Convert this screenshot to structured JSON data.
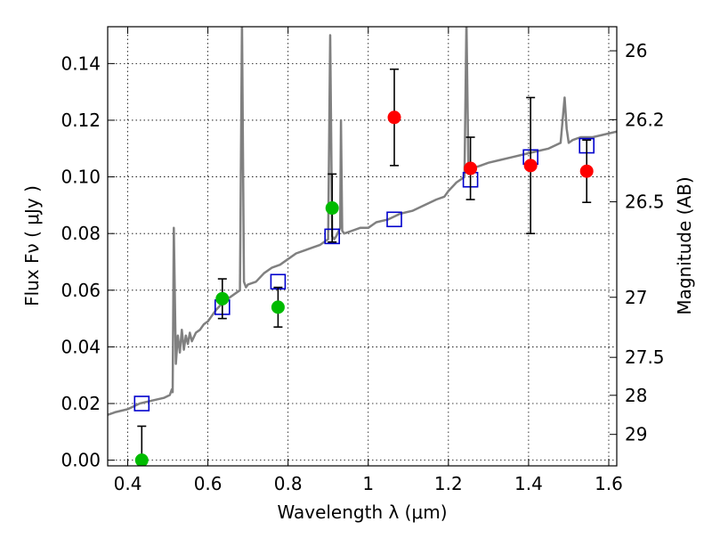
{
  "chart_data": {
    "type": "scatter",
    "xlabel": "Wavelength  λ (μm)",
    "ylabel_left": "Flux  Fν  ( μJy )",
    "ylabel_right": "Magnitude (AB)",
    "xlim": [
      0.35,
      1.62
    ],
    "ylim": [
      -0.002,
      0.153
    ],
    "grid": true,
    "x_ticks": [
      0.4,
      0.6,
      0.8,
      1.0,
      1.2,
      1.4,
      1.6
    ],
    "x_tick_labels": [
      "0.4",
      "0.6",
      "0.8",
      "1",
      "1.2",
      "1.4",
      "1.6"
    ],
    "y_ticks": [
      0.0,
      0.02,
      0.04,
      0.06,
      0.08,
      0.1,
      0.12,
      0.14
    ],
    "y_tick_labels": [
      "0.00",
      "0.02",
      "0.04",
      "0.06",
      "0.08",
      "0.10",
      "0.12",
      "0.14"
    ],
    "right_ticks": [
      {
        "label": "26",
        "flux": 0.1445
      },
      {
        "label": "26.2",
        "flux": 0.1202
      },
      {
        "label": "26.5",
        "flux": 0.0912
      },
      {
        "label": "27",
        "flux": 0.0575
      },
      {
        "label": "27.5",
        "flux": 0.0363
      },
      {
        "label": "28",
        "flux": 0.0229
      },
      {
        "label": "29",
        "flux": 0.0091
      }
    ],
    "series": [
      {
        "style": "line",
        "color": "#808080",
        "x": [
          0.35,
          0.37,
          0.4,
          0.43,
          0.46,
          0.49,
          0.505,
          0.51,
          0.512,
          0.515,
          0.52,
          0.525,
          0.53,
          0.535,
          0.54,
          0.545,
          0.55,
          0.555,
          0.56,
          0.57,
          0.58,
          0.59,
          0.6,
          0.62,
          0.64,
          0.66,
          0.68,
          0.685,
          0.69,
          0.695,
          0.7,
          0.72,
          0.74,
          0.76,
          0.78,
          0.8,
          0.82,
          0.84,
          0.86,
          0.88,
          0.9,
          0.905,
          0.91,
          0.915,
          0.92,
          0.93,
          0.932,
          0.935,
          0.94,
          0.96,
          0.98,
          1.0,
          1.02,
          1.05,
          1.08,
          1.11,
          1.14,
          1.17,
          1.19,
          1.2,
          1.22,
          1.24,
          1.245,
          1.25,
          1.255,
          1.26,
          1.28,
          1.3,
          1.33,
          1.36,
          1.39,
          1.42,
          1.45,
          1.48,
          1.49,
          1.495,
          1.5,
          1.51,
          1.53,
          1.56,
          1.59,
          1.62
        ],
        "y": [
          0.016,
          0.017,
          0.018,
          0.02,
          0.021,
          0.022,
          0.023,
          0.025,
          0.024,
          0.082,
          0.034,
          0.044,
          0.038,
          0.046,
          0.039,
          0.044,
          0.041,
          0.045,
          0.042,
          0.045,
          0.046,
          0.048,
          0.049,
          0.053,
          0.056,
          0.058,
          0.06,
          0.155,
          0.063,
          0.061,
          0.062,
          0.063,
          0.066,
          0.068,
          0.069,
          0.071,
          0.073,
          0.074,
          0.075,
          0.076,
          0.078,
          0.15,
          0.079,
          0.078,
          0.079,
          0.082,
          0.12,
          0.081,
          0.08,
          0.081,
          0.082,
          0.082,
          0.084,
          0.085,
          0.087,
          0.088,
          0.09,
          0.092,
          0.093,
          0.095,
          0.098,
          0.1,
          0.155,
          0.101,
          0.102,
          0.103,
          0.104,
          0.105,
          0.106,
          0.107,
          0.108,
          0.109,
          0.11,
          0.112,
          0.128,
          0.117,
          0.112,
          0.113,
          0.114,
          0.114,
          0.115,
          0.116
        ]
      },
      {
        "style": "open-square",
        "color": "#0000cc",
        "x": [
          0.435,
          0.636,
          0.775,
          0.91,
          1.065,
          1.255,
          1.405,
          1.545
        ],
        "y": [
          0.02,
          0.054,
          0.063,
          0.079,
          0.085,
          0.099,
          0.107,
          0.111
        ]
      },
      {
        "style": "filled-circle-errorbar",
        "color": "#00bb00",
        "x": [
          0.435,
          0.636,
          0.775,
          0.91
        ],
        "y": [
          0.0,
          0.057,
          0.054,
          0.089
        ],
        "yerr": [
          0.012,
          0.007,
          0.007,
          0.012
        ]
      },
      {
        "style": "filled-circle-errorbar",
        "color": "#ff0000",
        "x": [
          1.065,
          1.255,
          1.405,
          1.545
        ],
        "y": [
          0.121,
          0.103,
          0.104,
          0.102
        ],
        "yerr": [
          0.017,
          0.011,
          0.024,
          0.011
        ]
      }
    ]
  }
}
